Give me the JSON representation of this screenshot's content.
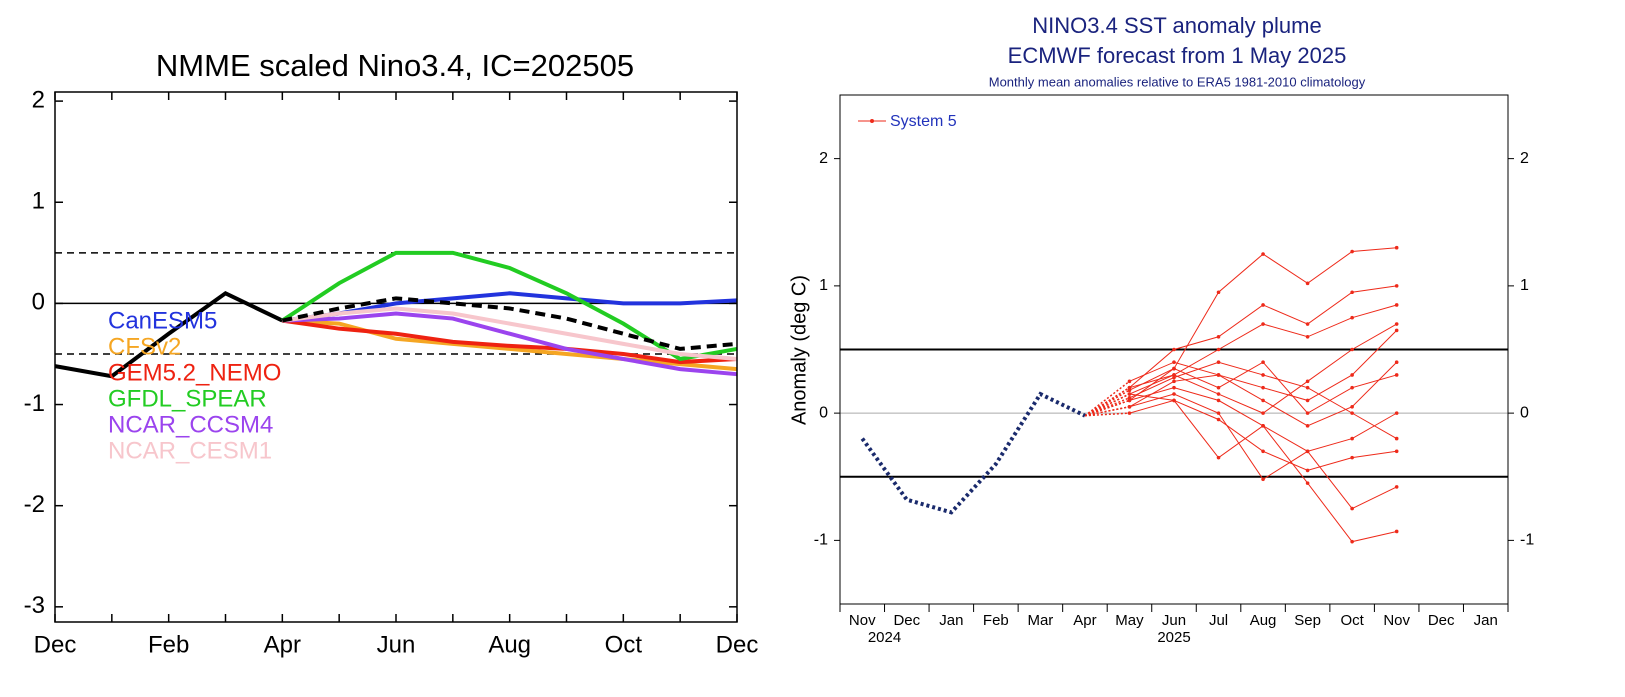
{
  "chart_data": [
    {
      "type": "line",
      "title": "NMME scaled Nino3.4, IC=202505",
      "categories": [
        "Dec",
        null,
        "Feb",
        null,
        "Apr",
        null,
        "Jun",
        null,
        "Aug",
        null,
        "Oct",
        null,
        "Dec"
      ],
      "ylim": [
        -3.15,
        2.09
      ],
      "yticks": [
        -3,
        -2,
        -1,
        0,
        1,
        2
      ],
      "reference_lines": [
        {
          "value": 0.5,
          "style": "dashed"
        },
        {
          "value": -0.5,
          "style": "dashed"
        },
        {
          "value": 0,
          "style": "solid"
        }
      ],
      "series": [
        {
          "color": "#000000",
          "values": [
            -0.62,
            -0.72,
            -0.3,
            0.1,
            -0.17,
            null,
            null,
            null,
            null,
            null,
            null,
            null,
            null
          ]
        },
        {
          "name": "CanESM5",
          "color": "#2233dd",
          "values": [
            null,
            null,
            null,
            null,
            -0.17,
            -0.1,
            0.0,
            0.05,
            0.1,
            0.05,
            0.0,
            0.0,
            0.03
          ]
        },
        {
          "name": "CFSv2",
          "color": "#f5a623",
          "values": [
            null,
            null,
            null,
            null,
            -0.17,
            -0.2,
            -0.35,
            -0.4,
            -0.45,
            -0.5,
            -0.55,
            -0.6,
            -0.65
          ]
        },
        {
          "name": "GEM5.2_NEMO",
          "color": "#ee2211",
          "values": [
            null,
            null,
            null,
            null,
            -0.17,
            -0.25,
            -0.3,
            -0.38,
            -0.42,
            -0.45,
            -0.5,
            -0.58,
            -0.55
          ]
        },
        {
          "name": "GFDL_SPEAR",
          "color": "#22cc22",
          "values": [
            null,
            null,
            null,
            null,
            -0.17,
            0.2,
            0.5,
            0.5,
            0.35,
            0.1,
            -0.2,
            -0.55,
            -0.45
          ]
        },
        {
          "name": "NCAR_CCSM4",
          "color": "#9b44ee",
          "values": [
            null,
            null,
            null,
            null,
            -0.17,
            -0.15,
            -0.1,
            -0.15,
            -0.3,
            -0.45,
            -0.55,
            -0.65,
            -0.7
          ]
        },
        {
          "name": "NCAR_CESM1",
          "color": "#f7c6cc",
          "values": [
            null,
            null,
            null,
            null,
            -0.17,
            -0.1,
            -0.05,
            -0.1,
            -0.2,
            -0.3,
            -0.4,
            -0.5,
            -0.55
          ]
        },
        {
          "color": "#000000",
          "dashed": true,
          "values": [
            null,
            null,
            null,
            null,
            -0.17,
            -0.05,
            0.05,
            0.0,
            -0.05,
            -0.15,
            -0.3,
            -0.45,
            -0.4
          ]
        }
      ]
    },
    {
      "type": "plume",
      "title": "NINO3.4 SST anomaly plume",
      "subtitle": "ECMWF forecast from 1 May 2025",
      "note": "Monthly mean anomalies relative to ERA5 1981-2010 climatology",
      "ylabel": "Anomaly (deg C)",
      "categories": [
        "Nov",
        "Dec",
        "Jan",
        "Feb",
        "Mar",
        "Apr",
        "May",
        "Jun",
        "Jul",
        "Aug",
        "Sep",
        "Oct",
        "Nov",
        "Dec",
        "Jan"
      ],
      "year_labels": [
        "2024",
        "2025"
      ],
      "ylim": [
        -1.5,
        2.5
      ],
      "yticks": [
        -1,
        0,
        1,
        2
      ],
      "reference_lines": [
        {
          "value": 0.5,
          "style": "solid"
        },
        {
          "value": -0.5,
          "style": "solid"
        },
        {
          "value": 0,
          "style": "gray"
        }
      ],
      "observed": {
        "color": "#1a2a6c",
        "values": [
          -0.2,
          -0.68,
          -0.78,
          -0.4,
          0.15,
          -0.02,
          null,
          null,
          null,
          null,
          null,
          null,
          null,
          null,
          null
        ]
      },
      "ensemble": {
        "name": "System 5",
        "color": "#ee2a1a",
        "members": [
          [
            null,
            null,
            null,
            null,
            null,
            null,
            0.1,
            0.35,
            0.95,
            1.25,
            1.02,
            1.27,
            1.3,
            null,
            null
          ],
          [
            null,
            null,
            null,
            null,
            null,
            null,
            0.2,
            0.5,
            0.6,
            0.85,
            0.7,
            0.95,
            1.0,
            null,
            null
          ],
          [
            null,
            null,
            null,
            null,
            null,
            null,
            0.15,
            0.3,
            0.5,
            0.7,
            0.6,
            0.75,
            0.85,
            null,
            null
          ],
          [
            null,
            null,
            null,
            null,
            null,
            null,
            0.05,
            0.25,
            0.3,
            0.2,
            0.1,
            0.3,
            0.65,
            null,
            null
          ],
          [
            null,
            null,
            null,
            null,
            null,
            null,
            0.25,
            0.4,
            0.3,
            0.1,
            -0.1,
            0.05,
            0.4,
            null,
            null
          ],
          [
            null,
            null,
            null,
            null,
            null,
            null,
            0.1,
            0.2,
            0.1,
            -0.1,
            -0.3,
            -0.2,
            0.0,
            null,
            null
          ],
          [
            null,
            null,
            null,
            null,
            null,
            null,
            0.0,
            0.1,
            -0.05,
            -0.3,
            -0.45,
            -0.35,
            -0.3,
            null,
            null
          ],
          [
            null,
            null,
            null,
            null,
            null,
            null,
            0.15,
            0.1,
            -0.35,
            -0.1,
            -0.55,
            -1.01,
            -0.93,
            null,
            null
          ],
          [
            null,
            null,
            null,
            null,
            null,
            null,
            0.2,
            0.3,
            0.15,
            0.0,
            0.25,
            0.5,
            0.7,
            null,
            null
          ],
          [
            null,
            null,
            null,
            null,
            null,
            null,
            0.05,
            0.15,
            0.0,
            -0.52,
            -0.3,
            -0.75,
            -0.58,
            null,
            null
          ],
          [
            null,
            null,
            null,
            null,
            null,
            null,
            0.12,
            0.28,
            0.4,
            0.3,
            0.2,
            0.0,
            -0.2,
            null,
            null
          ],
          [
            null,
            null,
            null,
            null,
            null,
            null,
            0.18,
            0.35,
            0.2,
            0.4,
            0.0,
            0.2,
            0.3,
            null,
            null
          ]
        ]
      }
    }
  ]
}
